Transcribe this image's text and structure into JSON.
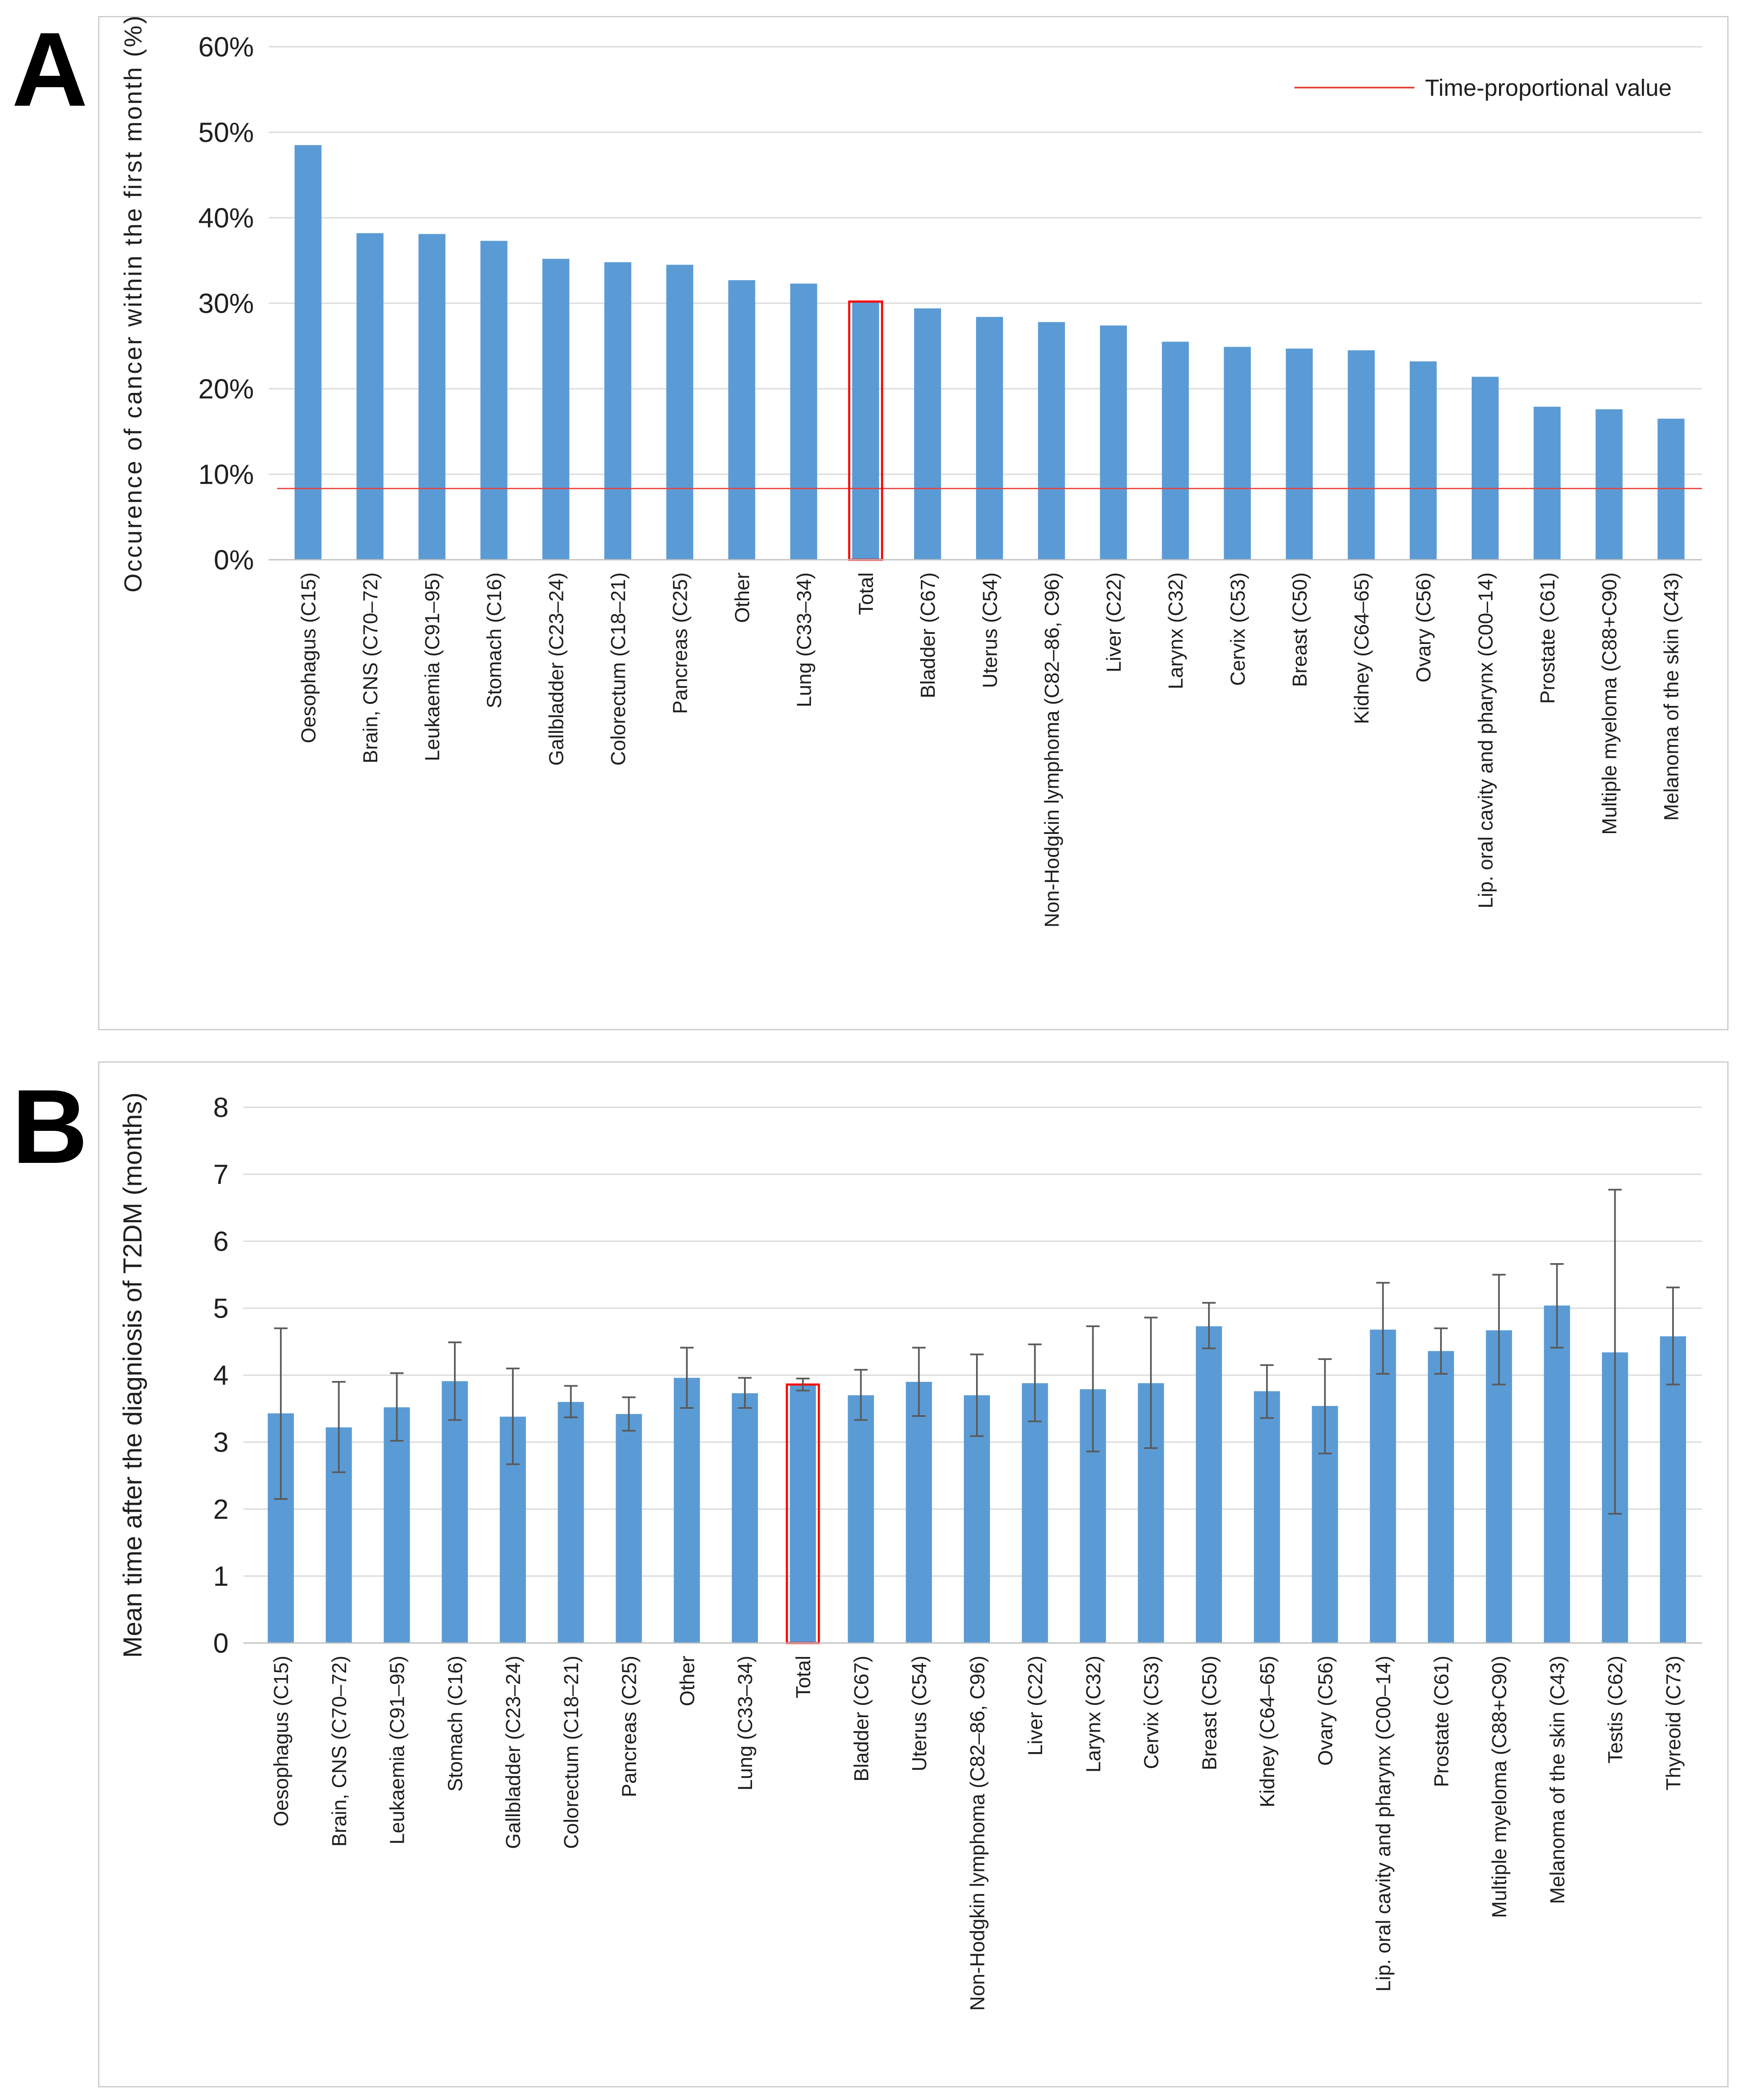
{
  "figure": {
    "panel_a_label": "A",
    "panel_b_label": "B"
  },
  "colors": {
    "bar": "#5b9bd5",
    "highlight_outline": "#ff0000",
    "reference_line": "#e8403a",
    "gridline": "#d9d9d9",
    "axis_line": "#bfbfbf",
    "error_bar": "#595959",
    "text": "#1f1f1f",
    "panel_border": "#cdcdcd"
  },
  "chart_data": [
    {
      "id": "panel_a",
      "type": "bar",
      "title": "",
      "xlabel": "",
      "ylabel": "Occurence of cancer within the first month (%)",
      "ylim": [
        0,
        60
      ],
      "ytick_values": [
        0,
        10,
        20,
        30,
        40,
        50,
        60
      ],
      "ytick_labels": [
        "0%",
        "10%",
        "20%",
        "30%",
        "40%",
        "50%",
        "60%"
      ],
      "grid": true,
      "legend_position": "top-right",
      "legend": [
        {
          "label": "Time-proportional value",
          "color": "#e8403a",
          "shape": "line"
        }
      ],
      "reference_line_value": 8.33,
      "highlight_category": "Total",
      "categories": [
        "Oesophagus (C15)",
        "Brain, CNS (C70–72)",
        "Leukaemia (C91–95)",
        "Stomach (C16)",
        "Gallbladder (C23–24)",
        "Colorectum (C18–21)",
        "Pancreas (C25)",
        "Other",
        "Lung (C33–34)",
        "Total",
        "Bladder (C67)",
        "Uterus (C54)",
        "Non-Hodgkin lymphoma (C82–86, C96)",
        "Liver (C22)",
        "Larynx (C32)",
        "Cervix (C53)",
        "Breast (C50)",
        "Kidney (C64–65)",
        "Ovary (C56)",
        "Lip. oral cavity and pharynx (C00–14)",
        "Prostate (C61)",
        "Multiple myeloma (C88+C90)",
        "Melanoma of the skin (C43)"
      ],
      "values": [
        48.5,
        38.2,
        38.1,
        37.3,
        35.2,
        34.8,
        34.5,
        32.7,
        32.3,
        30.2,
        29.4,
        28.4,
        27.8,
        27.4,
        25.5,
        24.9,
        24.7,
        24.5,
        23.2,
        21.4,
        17.9,
        17.6,
        16.5
      ]
    },
    {
      "id": "panel_b",
      "type": "bar",
      "title": "",
      "xlabel": "",
      "ylabel": "Mean time after the diagniosis of T2DM (months)",
      "ylim": [
        0,
        8
      ],
      "ytick_values": [
        0,
        1,
        2,
        3,
        4,
        5,
        6,
        7,
        8
      ],
      "ytick_labels": [
        "0",
        "1",
        "2",
        "3",
        "4",
        "5",
        "6",
        "7",
        "8"
      ],
      "grid": true,
      "highlight_category": "Total",
      "categories": [
        "Oesophagus (C15)",
        "Brain, CNS (C70–72)",
        "Leukaemia (C91–95)",
        "Stomach (C16)",
        "Gallbladder (C23–24)",
        "Colorectum (C18–21)",
        "Pancreas (C25)",
        "Other",
        "Lung (C33–34)",
        "Total",
        "Bladder (C67)",
        "Uterus (C54)",
        "Non-Hodgkin lymphoma (C82–86, C96)",
        "Liver (C22)",
        "Larynx (C32)",
        "Cervix (C53)",
        "Breast (C50)",
        "Kidney (C64–65)",
        "Ovary (C56)",
        "Lip. oral cavity and pharynx (C00–14)",
        "Prostate (C61)",
        "Multiple myeloma (C88+C90)",
        "Melanoma of the skin (C43)",
        "Testis (C62)",
        "Thyreoid (C73)"
      ],
      "values": [
        3.43,
        3.22,
        3.52,
        3.91,
        3.38,
        3.6,
        3.42,
        3.96,
        3.73,
        3.86,
        3.7,
        3.9,
        3.7,
        3.88,
        3.79,
        3.88,
        4.73,
        3.76,
        3.54,
        4.68,
        4.36,
        4.67,
        5.04,
        4.34,
        4.58
      ],
      "error_low": [
        2.15,
        2.55,
        3.02,
        3.33,
        2.67,
        3.37,
        3.17,
        3.51,
        3.51,
        3.77,
        3.33,
        3.39,
        3.09,
        3.31,
        2.86,
        2.91,
        4.4,
        3.36,
        2.83,
        4.02,
        4.02,
        3.86,
        4.41,
        1.93,
        3.86
      ],
      "error_high": [
        4.7,
        3.9,
        4.03,
        4.49,
        4.1,
        3.84,
        3.67,
        4.41,
        3.96,
        3.95,
        4.08,
        4.41,
        4.31,
        4.46,
        4.73,
        4.86,
        5.08,
        4.15,
        4.24,
        5.38,
        4.7,
        5.5,
        5.66,
        6.77,
        5.31
      ]
    }
  ]
}
